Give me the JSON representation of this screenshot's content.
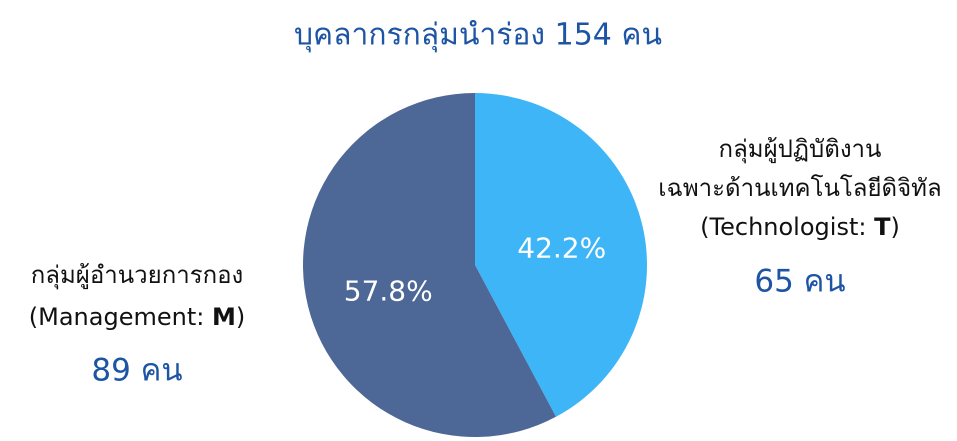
{
  "chart_data": {
    "type": "pie",
    "title": "บุคลากรกลุ่มนำร่อง 154 คน",
    "values": [
      42.2,
      57.8
    ],
    "value_labels": [
      "42.2%",
      "57.8%"
    ],
    "colors": [
      "#3db5f7",
      "#4d6796"
    ],
    "label_lines": [
      [
        [
          "กลุ่มผู้ปฏิบัติงาน"
        ],
        [
          "เฉพาะด้านเทคโนโลยีดิจิทัล"
        ],
        [
          "(Technologist: ",
          "T",
          ")"
        ]
      ],
      [
        [
          "กลุ่มผู้อำนวยการกอง"
        ],
        [
          "(Management: ",
          "M",
          ")"
        ]
      ]
    ],
    "counts": [
      65,
      89
    ],
    "count_labels": [
      "65 คน",
      "89 คน"
    ]
  }
}
